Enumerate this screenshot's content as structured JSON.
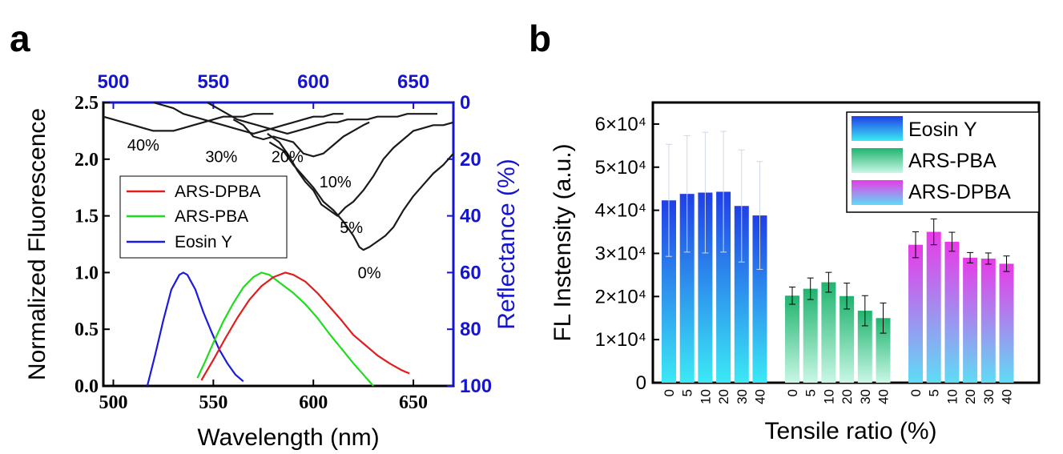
{
  "panel_a_label": "a",
  "panel_b_label": "b",
  "chart_data": [
    {
      "type": "line",
      "panel": "a",
      "xlabel": "Wavelength (nm)",
      "ylabel": "Normalized Fluorescence",
      "y2label": "Reflectance (%)",
      "xlim": [
        495,
        670
      ],
      "ylim": [
        0,
        2.5
      ],
      "y2lim": [
        100,
        0
      ],
      "x_ticks": [
        "500",
        "550",
        "600",
        "650"
      ],
      "x_top_ticks": [
        "500",
        "550",
        "600",
        "650"
      ],
      "y_ticks": [
        "0.0",
        "0.5",
        "1.0",
        "1.5",
        "2.0",
        "2.5"
      ],
      "y2_ticks": [
        "0",
        "20",
        "40",
        "60",
        "80",
        "100"
      ],
      "legend": {
        "position": "center-left",
        "entries": [
          "ARS-DPBA",
          "ARS-PBA",
          "Eosin Y"
        ]
      },
      "colors": {
        "ARS-DPBA": "#e11d1d",
        "ARS-PBA": "#1fdc1f",
        "Eosin Y": "#1a1ae0",
        "reflectance": "#1a1a1a",
        "axis_right": "#1515d0"
      },
      "series": [
        {
          "name": "Eosin Y",
          "axis": "left",
          "x": [
            517,
            521,
            525,
            529,
            533,
            535,
            537,
            541,
            545,
            549,
            553,
            557,
            561,
            565
          ],
          "y": [
            0.0,
            0.28,
            0.58,
            0.85,
            0.98,
            1.0,
            0.98,
            0.85,
            0.65,
            0.48,
            0.32,
            0.2,
            0.1,
            0.04
          ]
        },
        {
          "name": "ARS-PBA",
          "axis": "left",
          "x": [
            542,
            546,
            550,
            555,
            560,
            565,
            570,
            574,
            578,
            584,
            590,
            596,
            602,
            608,
            614,
            620,
            626,
            630
          ],
          "y": [
            0.07,
            0.22,
            0.38,
            0.57,
            0.73,
            0.87,
            0.96,
            1.0,
            0.98,
            0.9,
            0.82,
            0.72,
            0.6,
            0.46,
            0.33,
            0.2,
            0.08,
            0.0
          ]
        },
        {
          "name": "ARS-DPBA",
          "axis": "left",
          "x": [
            544,
            550,
            556,
            562,
            568,
            574,
            580,
            586,
            590,
            596,
            602,
            608,
            614,
            620,
            626,
            632,
            638,
            644,
            648
          ],
          "y": [
            0.05,
            0.23,
            0.42,
            0.6,
            0.76,
            0.88,
            0.96,
            1.0,
            0.98,
            0.92,
            0.82,
            0.7,
            0.58,
            0.45,
            0.36,
            0.27,
            0.2,
            0.14,
            0.11
          ]
        },
        {
          "name": "0%",
          "axis": "right",
          "x": [
            578,
            585,
            590,
            595,
            600,
            605,
            610,
            615,
            620,
            623,
            625,
            628,
            632,
            636,
            640,
            645,
            650,
            655,
            660,
            665,
            670
          ],
          "y": [
            14,
            17,
            22,
            26,
            30,
            35,
            38,
            42,
            47,
            51,
            52,
            51,
            49,
            47,
            44,
            38,
            33,
            29,
            25,
            22,
            18
          ]
        },
        {
          "name": "5%",
          "axis": "right",
          "x": [
            577,
            583,
            588,
            592,
            596,
            600,
            604,
            608,
            612,
            616,
            620,
            625,
            630,
            635,
            640,
            645,
            650,
            655,
            660,
            665,
            670
          ],
          "y": [
            11,
            14,
            19,
            24,
            28,
            31,
            36,
            38,
            40,
            37,
            35,
            31,
            26,
            20,
            16,
            13,
            10,
            9,
            8,
            8,
            7
          ]
        },
        {
          "name": "10%",
          "axis": "right",
          "x": [
            560,
            565,
            570,
            575,
            580,
            585,
            590,
            595,
            600,
            605,
            610,
            615,
            620,
            625,
            628
          ],
          "y": [
            6,
            8,
            12,
            13,
            12,
            13,
            14,
            18,
            19,
            18,
            15,
            12,
            10,
            8,
            7
          ]
        },
        {
          "name": "20%",
          "axis": "right",
          "x": [
            547,
            552,
            557,
            562,
            567,
            572,
            577,
            582,
            587,
            592,
            597,
            602,
            607,
            612,
            617,
            622,
            627,
            632,
            637,
            642,
            647,
            652,
            657,
            662
          ],
          "y": [
            0,
            2,
            4,
            6,
            7,
            8,
            9,
            10,
            11,
            10,
            9,
            8,
            7,
            7,
            6,
            6,
            6,
            5,
            5,
            5,
            4,
            4,
            4,
            4
          ]
        },
        {
          "name": "30%",
          "axis": "right",
          "x": [
            520,
            525,
            530,
            535,
            540,
            545,
            550,
            555,
            560,
            565,
            570,
            575,
            580,
            585,
            590,
            595,
            600,
            605,
            610,
            615
          ],
          "y": [
            0,
            1,
            2,
            4,
            5,
            6,
            7,
            8,
            9,
            10,
            11,
            10,
            9,
            8,
            7,
            6,
            5,
            5,
            4,
            4
          ]
        },
        {
          "name": "40%",
          "axis": "right",
          "x": [
            495,
            500,
            505,
            510,
            515,
            520,
            525,
            530,
            535,
            540,
            545,
            550,
            555,
            560,
            565,
            570,
            575,
            580
          ],
          "y": [
            5,
            6,
            7,
            8,
            9,
            10,
            10,
            10,
            9,
            8,
            7,
            6,
            5,
            5,
            5,
            4,
            4,
            4
          ]
        }
      ],
      "annotations": [
        {
          "text": "0%",
          "x": 628,
          "y2": 60
        },
        {
          "text": "5%",
          "x": 619,
          "y2": 44
        },
        {
          "text": "10%",
          "x": 611,
          "y2": 28
        },
        {
          "text": "20%",
          "x": 587,
          "y2": 19
        },
        {
          "text": "30%",
          "x": 554,
          "y2": 19
        },
        {
          "text": "40%",
          "x": 515,
          "y2": 15
        }
      ]
    },
    {
      "type": "bar",
      "panel": "b",
      "xlabel": "Tensile ratio (%)",
      "ylabel": "FL Instensity (a.u.)",
      "ylim": [
        0,
        65000
      ],
      "y_ticks": [
        "0",
        "1×10⁴",
        "2×10⁴",
        "3×10⁴",
        "4×10⁴",
        "5×10⁴",
        "6×10⁴"
      ],
      "categories": [
        "0",
        "5",
        "10",
        "20",
        "30",
        "40"
      ],
      "legend": {
        "position": "top-right",
        "entries": [
          "Eosin Y",
          "ARS-PBA",
          "ARS-DPBA"
        ]
      },
      "series": [
        {
          "name": "Eosin Y",
          "values": [
            42300,
            43800,
            44100,
            44300,
            41000,
            38800
          ],
          "errors": [
            13000,
            13500,
            14000,
            14000,
            13000,
            12500
          ],
          "color_top": "#1f3fe6",
          "color_bottom": "#3ce9f5"
        },
        {
          "name": "ARS-PBA",
          "values": [
            20200,
            21800,
            23300,
            20100,
            16700,
            15000
          ],
          "errors": [
            2000,
            2500,
            2300,
            3000,
            3500,
            3500
          ],
          "color_top": "#1fb46e",
          "color_bottom": "#c9f7e6"
        },
        {
          "name": "ARS-DPBA",
          "values": [
            32000,
            35000,
            32700,
            29000,
            28800,
            27600
          ],
          "errors": [
            3000,
            3000,
            2200,
            1200,
            1300,
            1800
          ],
          "color_top": "#e83ae8",
          "color_bottom": "#5fdcf5"
        }
      ]
    }
  ]
}
